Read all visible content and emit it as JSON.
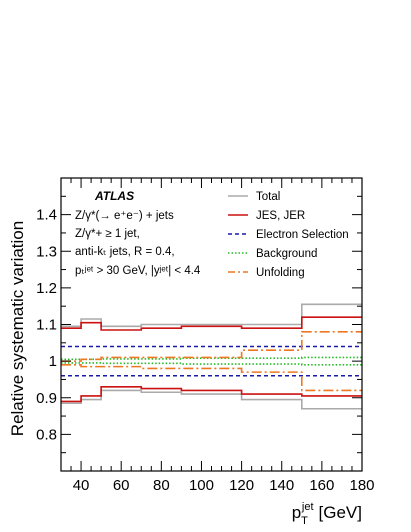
{
  "chart_data": {
    "type": "line",
    "xlabel": "p",
    "xlabel_sub": "T",
    "xlabel_sup": "jet",
    "xlabel_unit": "[GeV]",
    "ylabel": "Relative systematic variation",
    "xlim": [
      30,
      180
    ],
    "ylim": [
      0.7,
      1.5
    ],
    "xticks": [
      40,
      60,
      80,
      100,
      120,
      140,
      160,
      180
    ],
    "yticks": [
      0.8,
      0.9,
      1,
      1.1,
      1.2,
      1.3,
      1.4
    ],
    "ytick_labels": [
      "0.8",
      "0.9",
      "1",
      "1.1",
      "1.2",
      "1.3",
      "1.4"
    ],
    "bin_edges": [
      30,
      40,
      50,
      70,
      90,
      120,
      150,
      180
    ],
    "atlas_label": "ATLAS",
    "annotations": [
      "Z/γ*(→ e⁺e⁻) + jets",
      "Z/γ*+ ≥ 1 jet,",
      "anti-kₜ jets, R = 0.4,",
      "pₜʲᵉᵗ > 30 GeV, |yʲᵉᵗ| < 4.4"
    ],
    "legend_position": "top-right",
    "series": [
      {
        "name": "Total",
        "color": "#aaaaaa",
        "dash": "solid",
        "up": [
          1.095,
          1.115,
          1.095,
          1.1,
          1.1,
          1.1,
          1.155
        ],
        "down": [
          0.885,
          0.895,
          0.92,
          0.915,
          0.91,
          0.895,
          0.87
        ]
      },
      {
        "name": "JES, JER",
        "color": "#cc1111",
        "dash": "solid",
        "up": [
          1.09,
          1.105,
          1.085,
          1.09,
          1.095,
          1.09,
          1.12
        ],
        "down": [
          0.89,
          0.905,
          0.93,
          0.925,
          0.92,
          0.91,
          0.905
        ]
      },
      {
        "name": "Electron Selection",
        "color": "#1a1aaa",
        "dash": "dashed",
        "up": [
          1.04,
          1.04,
          1.04,
          1.04,
          1.04,
          1.04,
          1.04
        ],
        "down": [
          0.96,
          0.96,
          0.96,
          0.96,
          0.96,
          0.96,
          0.96
        ]
      },
      {
        "name": "Background",
        "color": "#22bb22",
        "dash": "dotted",
        "up": [
          1.005,
          1.005,
          1.006,
          1.006,
          1.008,
          1.008,
          1.01
        ],
        "down": [
          0.995,
          0.995,
          0.994,
          0.994,
          0.992,
          0.992,
          0.99
        ]
      },
      {
        "name": "Unfolding",
        "color": "#ee7722",
        "dash": "dashdot",
        "up": [
          1.0,
          1.005,
          1.01,
          1.01,
          1.01,
          1.03,
          1.08
        ],
        "down": [
          0.99,
          0.985,
          0.985,
          0.98,
          0.98,
          0.97,
          0.92
        ]
      }
    ]
  }
}
